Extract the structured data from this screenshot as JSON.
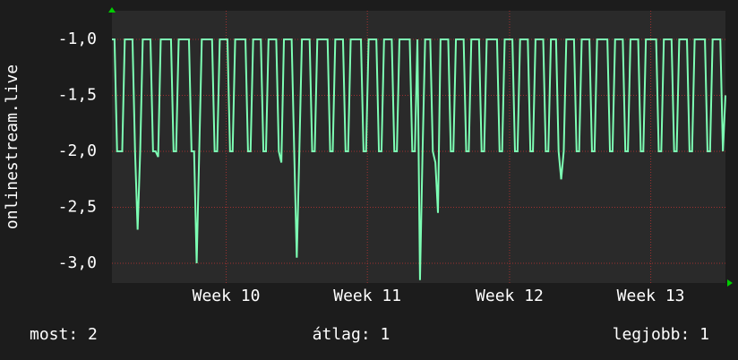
{
  "chart_data": {
    "type": "line",
    "y_label": "onlinestream.live",
    "series": [
      {
        "name": "onlinestream.live",
        "color": "#7dffb4",
        "values": [
          -1,
          -1,
          -2,
          -2,
          -2,
          -1,
          -1,
          -1,
          -1,
          -2,
          -2.7,
          -2,
          -1,
          -1,
          -1,
          -1,
          -2,
          -2,
          -2.05,
          -1,
          -1,
          -1,
          -1,
          -1,
          -2,
          -2,
          -1,
          -1,
          -1,
          -1,
          -1,
          -2,
          -2,
          -3,
          -2,
          -1,
          -1,
          -1,
          -1,
          -1,
          -2,
          -2,
          -1,
          -1,
          -1,
          -1,
          -2,
          -2,
          -1,
          -1,
          -1,
          -1,
          -1,
          -2,
          -2,
          -1,
          -1,
          -1,
          -1,
          -2,
          -2,
          -1,
          -1,
          -1,
          -1,
          -2,
          -2.1,
          -1,
          -1,
          -1,
          -1,
          -2,
          -2.95,
          -2,
          -1,
          -1,
          -1,
          -1,
          -2,
          -2,
          -1,
          -1,
          -1,
          -1,
          -1,
          -2,
          -2,
          -1,
          -1,
          -1,
          -1,
          -2,
          -2,
          -1,
          -1,
          -1,
          -1,
          -1,
          -2,
          -2,
          -1,
          -1,
          -1,
          -1,
          -2,
          -2,
          -1,
          -1,
          -1,
          -1,
          -2,
          -2,
          -1,
          -1,
          -1,
          -1,
          -1,
          -2,
          -2,
          -1,
          -3.15,
          -2,
          -1,
          -1,
          -1,
          -2,
          -2.1,
          -2.55,
          -1,
          -1,
          -1,
          -1,
          -2,
          -2,
          -1,
          -1,
          -1,
          -1,
          -2,
          -2,
          -1,
          -1,
          -1,
          -1,
          -2,
          -2,
          -1,
          -1,
          -1,
          -1,
          -1,
          -2,
          -2,
          -1,
          -1,
          -1,
          -1,
          -2,
          -2,
          -1,
          -1,
          -1,
          -1,
          -2,
          -2,
          -1,
          -1,
          -1,
          -1,
          -2,
          -2,
          -1,
          -1,
          -1,
          -2,
          -2.25,
          -2,
          -1,
          -1,
          -1,
          -1,
          -2,
          -2,
          -1,
          -1,
          -1,
          -1,
          -2,
          -2,
          -1,
          -1,
          -1,
          -1,
          -1,
          -2,
          -2,
          -1,
          -1,
          -1,
          -1,
          -2,
          -2,
          -1,
          -1,
          -1,
          -1,
          -2,
          -2,
          -1,
          -1,
          -1,
          -1,
          -1,
          -2,
          -2,
          -1,
          -1,
          -1,
          -1,
          -2,
          -2,
          -1,
          -1,
          -1,
          -1,
          -2,
          -2,
          -1,
          -1,
          -1,
          -1,
          -1,
          -2,
          -2,
          -1,
          -1,
          -1,
          -1,
          -2,
          -1.5
        ]
      }
    ],
    "xlim": [
      0,
      239
    ],
    "xticks": [
      {
        "value": 44.5,
        "label": "Week 10"
      },
      {
        "value": 99.5,
        "label": "Week 11"
      },
      {
        "value": 154.9,
        "label": "Week 12"
      },
      {
        "value": 209.9,
        "label": "Week 13"
      }
    ],
    "ylim": [
      -3.176,
      -0.744
    ],
    "yticks": [
      {
        "value": -1,
        "label": "-1,0"
      },
      {
        "value": -1.5,
        "label": "-1,5"
      },
      {
        "value": -2,
        "label": "-2,0"
      },
      {
        "value": -2.5,
        "label": "-2,5"
      },
      {
        "value": -3,
        "label": "-3,0"
      }
    ],
    "grid": true,
    "footer": [
      "most: 2",
      "átlag: 1",
      "legjobb: 1"
    ]
  }
}
